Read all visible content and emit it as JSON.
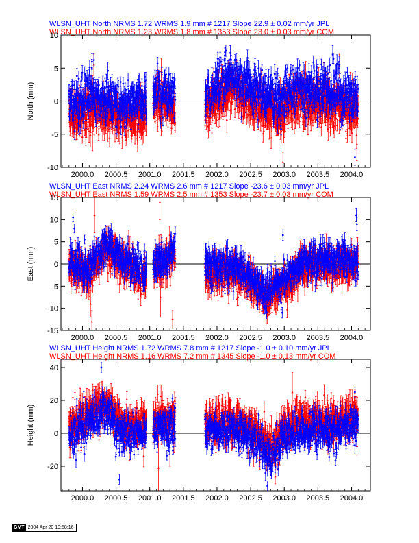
{
  "chart_data": [
    {
      "type": "scatter",
      "title_lines": [
        {
          "text": "WLSN_UHT North NRMS 1.72 WRMS  1.9 mm # 1217 Slope   22.9 ±  0.02 mm/yr JPL",
          "color": "#0000ff"
        },
        {
          "text": "WLSN_UHT North NRMS 1.23 WRMS  1.8 mm # 1353 Slope   23.0 ±  0.03 mm/yr COM",
          "color": "#ff0000"
        }
      ],
      "ylabel": "North (mm)",
      "xlim": [
        1999.68,
        2004.28
      ],
      "ylim": [
        -10,
        10
      ],
      "xticks": [
        2000.0,
        2000.5,
        2001.0,
        2001.5,
        2002.0,
        2002.5,
        2003.0,
        2003.5,
        2004.0
      ],
      "xtick_labels": [
        "2000.0",
        "2000.5",
        "2001.0",
        "2001.5",
        "2002.0",
        "2002.5",
        "2003.0",
        "2003.5",
        "2004.0"
      ],
      "yticks": [
        -10,
        -5,
        0,
        5,
        10
      ],
      "ytick_labels": [
        "-10",
        "-5",
        "0",
        "5",
        "10"
      ],
      "zero_line": true,
      "series": [
        {
          "name": "JPL",
          "color": "#0000ff",
          "marker": "circle"
        },
        {
          "name": "COM",
          "color": "#ff0000",
          "marker": "triangle"
        }
      ],
      "segments": [
        [
          1999.8,
          2000.95
        ],
        [
          2001.05,
          2001.38
        ],
        [
          2001.82,
          2004.1
        ]
      ],
      "trend": {
        "knots": [
          [
            1999.8,
            -0.6
          ],
          [
            2000.1,
            0.3
          ],
          [
            2000.5,
            -0.8
          ],
          [
            2000.9,
            -0.5
          ],
          [
            2001.1,
            1.5
          ],
          [
            2001.35,
            0.5
          ],
          [
            2001.85,
            0.5
          ],
          [
            2002.2,
            3.5
          ],
          [
            2002.55,
            1.5
          ],
          [
            2002.95,
            -0.6
          ],
          [
            2003.1,
            1.7
          ],
          [
            2003.5,
            1.2
          ],
          [
            2004.1,
            0.2
          ]
        ],
        "jpl_offset": 0.5,
        "com_offset": -1.5,
        "jpl_noise": 1.7,
        "com_noise": 1.5,
        "jpl_err": [
          0.6,
          1.4
        ],
        "com_err": [
          0.8,
          2.0
        ]
      },
      "outliers": [
        {
          "series": "JPL",
          "x": 2000.17,
          "y": 6.2,
          "err": 1.0
        },
        {
          "series": "COM",
          "x": 2000.17,
          "y": 5.5,
          "err": 1.6
        },
        {
          "series": "COM",
          "x": 2000.15,
          "y": -4.0,
          "err": 3.5
        },
        {
          "series": "COM",
          "x": 2001.17,
          "y": 4.5,
          "err": 2.0
        },
        {
          "series": "JPL",
          "x": 2003.82,
          "y": 5.5,
          "err": 1.2
        },
        {
          "series": "COM",
          "x": 2003.82,
          "y": 5.3,
          "err": 1.8
        },
        {
          "series": "JPL",
          "x": 2004.05,
          "y": -8.5,
          "err": 1.2
        },
        {
          "series": "COM",
          "x": 2004.08,
          "y": -6.5,
          "err": 2.5
        },
        {
          "series": "COM",
          "x": 2002.98,
          "y": -9.2,
          "err": 1.5
        }
      ]
    },
    {
      "type": "scatter",
      "title_lines": [
        {
          "text": "WLSN_UHT East NRMS 2.24 WRMS  2.6 mm # 1217 Slope  -23.6 ±  0.03 mm/yr JPL",
          "color": "#0000ff"
        },
        {
          "text": "WLSN_UHT East NRMS 1.59 WRMS  2.5 mm # 1353 Slope  -23.7 ±  0.03 mm/yr COM",
          "color": "#ff0000"
        }
      ],
      "ylabel": "East (mm)",
      "xlim": [
        1999.68,
        2004.28
      ],
      "ylim": [
        -15,
        15
      ],
      "xticks": [
        2000.0,
        2000.5,
        2001.0,
        2001.5,
        2002.0,
        2002.5,
        2003.0,
        2003.5,
        2004.0
      ],
      "xtick_labels": [
        "2000.0",
        "2000.5",
        "2001.0",
        "2001.5",
        "2002.0",
        "2002.5",
        "2003.0",
        "2003.5",
        "2004.0"
      ],
      "yticks": [
        -15,
        -10,
        -5,
        0,
        5,
        10,
        15
      ],
      "ytick_labels": [
        "-15",
        "-10",
        "-5",
        "0",
        "5",
        "10",
        "15"
      ],
      "zero_line": true,
      "series": [
        {
          "name": "JPL",
          "color": "#0000ff",
          "marker": "circle"
        },
        {
          "name": "COM",
          "color": "#ff0000",
          "marker": "triangle"
        }
      ],
      "segments": [
        [
          1999.8,
          2000.95
        ],
        [
          2001.05,
          2001.38
        ],
        [
          2001.82,
          2004.1
        ]
      ],
      "trend": {
        "knots": [
          [
            1999.8,
            1.0
          ],
          [
            2000.05,
            -2.0
          ],
          [
            2000.35,
            4.0
          ],
          [
            2000.65,
            0.5
          ],
          [
            2000.95,
            -2.5
          ],
          [
            2001.1,
            0.0
          ],
          [
            2001.35,
            2.5
          ],
          [
            2001.85,
            -1.5
          ],
          [
            2002.3,
            -1.0
          ],
          [
            2002.7,
            -6.5
          ],
          [
            2002.95,
            -4.5
          ],
          [
            2003.3,
            0.5
          ],
          [
            2003.6,
            0.5
          ],
          [
            2004.1,
            0.8
          ]
        ],
        "jpl_offset": 0.4,
        "com_offset": -0.8,
        "jpl_noise": 2.0,
        "com_noise": 1.8,
        "jpl_err": [
          0.9,
          2.0
        ],
        "com_err": [
          1.0,
          2.6
        ]
      },
      "outliers": [
        {
          "series": "JPL",
          "x": 1999.86,
          "y": 10.5,
          "err": 1.0
        },
        {
          "series": "JPL",
          "x": 1999.88,
          "y": 8.0,
          "err": 1.0
        },
        {
          "series": "JPL",
          "x": 2000.03,
          "y": 5.5,
          "err": 1.0
        },
        {
          "series": "COM",
          "x": 2000.18,
          "y": 11.0,
          "err": 4.0
        },
        {
          "series": "COM",
          "x": 2000.14,
          "y": -13.0,
          "err": 2.5
        },
        {
          "series": "COM",
          "x": 2000.12,
          "y": -9.0,
          "err": 3.0
        },
        {
          "series": "JPL",
          "x": 2000.3,
          "y": 6.5,
          "err": 1.0
        },
        {
          "series": "COM",
          "x": 2001.15,
          "y": 14.0,
          "err": 4.0
        },
        {
          "series": "COM",
          "x": 2001.16,
          "y": -7.5,
          "err": 4.5
        },
        {
          "series": "COM",
          "x": 2001.34,
          "y": -12.5,
          "err": 2.0
        },
        {
          "series": "JPL",
          "x": 2002.98,
          "y": 6.5,
          "err": 1.2
        },
        {
          "series": "JPL",
          "x": 2002.97,
          "y": -11.0,
          "err": 1.2
        },
        {
          "series": "JPL",
          "x": 2004.07,
          "y": 11.0,
          "err": 1.5
        },
        {
          "series": "JPL",
          "x": 2004.08,
          "y": 9.0,
          "err": 1.5
        }
      ]
    },
    {
      "type": "scatter",
      "title_lines": [
        {
          "text": "WLSN_UHT Height NRMS 1.72 WRMS  7.8 mm # 1217 Slope   -1.0 ±  0.10 mm/yr JPL",
          "color": "#0000ff"
        },
        {
          "text": "WLSN_UHT Height NRMS 1.16 WRMS  7.2 mm # 1345 Slope   -1.0 ±  0.13 mm/yr COM",
          "color": "#ff0000"
        }
      ],
      "ylabel": "Height (mm)",
      "xlim": [
        1999.68,
        2004.28
      ],
      "ylim": [
        -35,
        45
      ],
      "xticks": [
        2000.0,
        2000.5,
        2001.0,
        2001.5,
        2002.0,
        2002.5,
        2003.0,
        2003.5,
        2004.0
      ],
      "xtick_labels": [
        "2000.0",
        "2000.5",
        "2001.0",
        "2001.5",
        "2002.0",
        "2002.5",
        "2003.0",
        "2003.5",
        "2004.0"
      ],
      "yticks": [
        -20,
        0,
        20,
        40
      ],
      "ytick_labels": [
        "-20",
        "0",
        "20",
        "40"
      ],
      "zero_line": true,
      "series": [
        {
          "name": "JPL",
          "color": "#0000ff",
          "marker": "circle"
        },
        {
          "name": "COM",
          "color": "#ff0000",
          "marker": "triangle"
        }
      ],
      "segments": [
        [
          1999.8,
          2000.95
        ],
        [
          2001.05,
          2001.38
        ],
        [
          2001.82,
          2004.1
        ]
      ],
      "trend": {
        "knots": [
          [
            1999.8,
            0.0
          ],
          [
            2000.1,
            8.0
          ],
          [
            2000.35,
            15.0
          ],
          [
            2000.6,
            0.0
          ],
          [
            2000.95,
            2.0
          ],
          [
            2001.1,
            3.0
          ],
          [
            2001.35,
            5.0
          ],
          [
            2001.85,
            2.0
          ],
          [
            2002.3,
            3.0
          ],
          [
            2002.65,
            -5.0
          ],
          [
            2002.8,
            -15.0
          ],
          [
            2003.0,
            0.0
          ],
          [
            2003.5,
            3.0
          ],
          [
            2004.1,
            5.0
          ]
        ],
        "jpl_offset": -1.0,
        "com_offset": 4.0,
        "jpl_noise": 6.0,
        "com_noise": 5.5,
        "jpl_err": [
          2.0,
          5.0
        ],
        "com_err": [
          3.0,
          7.0
        ]
      },
      "outliers": [
        {
          "series": "JPL",
          "x": 2000.28,
          "y": 40.0,
          "err": 3.0
        },
        {
          "series": "JPL",
          "x": 2000.55,
          "y": -28.0,
          "err": 3.0
        },
        {
          "series": "COM",
          "x": 2001.13,
          "y": -21.0,
          "err": 20.0
        },
        {
          "series": "COM",
          "x": 2001.3,
          "y": -5.0,
          "err": 15.0
        },
        {
          "series": "JPL",
          "x": 2002.75,
          "y": -32.0,
          "err": 3.0
        },
        {
          "series": "COM",
          "x": 2003.12,
          "y": 25.0,
          "err": 12.0
        },
        {
          "series": "JPL",
          "x": 2004.05,
          "y": 25.0,
          "err": 3.0
        }
      ]
    }
  ],
  "footer": {
    "logo": "GMT",
    "timestamp": "2004 Apr 20 10:58:16"
  }
}
